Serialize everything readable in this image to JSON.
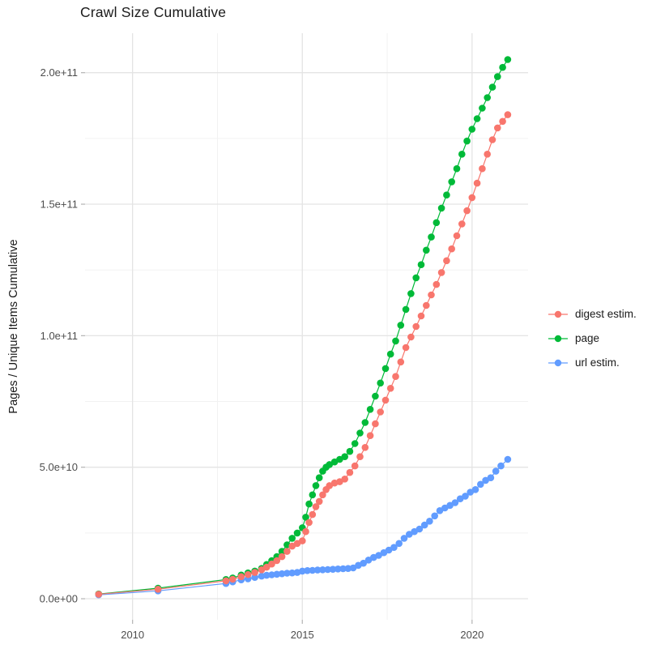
{
  "title": "Crawl Size Cumulative",
  "chart_data": {
    "type": "scatter",
    "line_overlay": true,
    "title": "Crawl Size Cumulative",
    "xlabel": "",
    "ylabel": "Pages / Unique Items Cumulative",
    "xlim": [
      2008.6,
      2021.65
    ],
    "ylim": [
      -8000000000.0,
      215000000000.0
    ],
    "grid": true,
    "legend_position": "right",
    "x_ticks": [
      {
        "value": 2010,
        "label": "2010"
      },
      {
        "value": 2015,
        "label": "2015"
      },
      {
        "value": 2020,
        "label": "2020"
      }
    ],
    "x_minor_ticks": [
      2012.5,
      2017.5
    ],
    "y_ticks": [
      {
        "value": 0,
        "label": "0.0e+00"
      },
      {
        "value": 50000000000.0,
        "label": "5.0e+10"
      },
      {
        "value": 100000000000.0,
        "label": "1.0e+11"
      },
      {
        "value": 150000000000.0,
        "label": "1.5e+11"
      },
      {
        "value": 200000000000.0,
        "label": "2.0e+11"
      }
    ],
    "y_minor_ticks": [
      25000000000.0,
      75000000000.0,
      125000000000.0,
      175000000000.0
    ],
    "series": [
      {
        "name": "digest estim.",
        "color": "#F8766D",
        "points": [
          [
            2009.0,
            1700000000.0
          ],
          [
            2010.75,
            3600000000.0
          ],
          [
            2012.75,
            6800000000.0
          ],
          [
            2012.95,
            7400000000.0
          ],
          [
            2013.2,
            8400000000.0
          ],
          [
            2013.4,
            9200000000.0
          ],
          [
            2013.6,
            10000000000.0
          ],
          [
            2013.8,
            11000000000.0
          ],
          [
            2013.95,
            12000000000.0
          ],
          [
            2014.1,
            13200000000.0
          ],
          [
            2014.25,
            14500000000.0
          ],
          [
            2014.4,
            16000000000.0
          ],
          [
            2014.55,
            18000000000.0
          ],
          [
            2014.7,
            20000000000.0
          ],
          [
            2014.85,
            21000000000.0
          ],
          [
            2015.0,
            22000000000.0
          ],
          [
            2015.1,
            25500000000.0
          ],
          [
            2015.2,
            29000000000.0
          ],
          [
            2015.3,
            32000000000.0
          ],
          [
            2015.4,
            35000000000.0
          ],
          [
            2015.5,
            37000000000.0
          ],
          [
            2015.6,
            39500000000.0
          ],
          [
            2015.7,
            41500000000.0
          ],
          [
            2015.8,
            43000000000.0
          ],
          [
            2015.95,
            44000000000.0
          ],
          [
            2016.1,
            44500000000.0
          ],
          [
            2016.25,
            45500000000.0
          ],
          [
            2016.4,
            48000000000.0
          ],
          [
            2016.55,
            50500000000.0
          ],
          [
            2016.7,
            54000000000.0
          ],
          [
            2016.85,
            57500000000.0
          ],
          [
            2017.0,
            62000000000.0
          ],
          [
            2017.15,
            66500000000.0
          ],
          [
            2017.3,
            71000000000.0
          ],
          [
            2017.45,
            75500000000.0
          ],
          [
            2017.6,
            80000000000.0
          ],
          [
            2017.75,
            84500000000.0
          ],
          [
            2017.9,
            90000000000.0
          ],
          [
            2018.05,
            95500000000.0
          ],
          [
            2018.2,
            99500000000.0
          ],
          [
            2018.35,
            103500000000.0
          ],
          [
            2018.5,
            107500000000.0
          ],
          [
            2018.65,
            111500000000.0
          ],
          [
            2018.8,
            115500000000.0
          ],
          [
            2018.95,
            119500000000.0
          ],
          [
            2019.1,
            124000000000.0
          ],
          [
            2019.25,
            128500000000.0
          ],
          [
            2019.4,
            133000000000.0
          ],
          [
            2019.55,
            138000000000.0
          ],
          [
            2019.7,
            142500000000.0
          ],
          [
            2019.85,
            147500000000.0
          ],
          [
            2020.0,
            152500000000.0
          ],
          [
            2020.15,
            158000000000.0
          ],
          [
            2020.3,
            163500000000.0
          ],
          [
            2020.45,
            169000000000.0
          ],
          [
            2020.6,
            174500000000.0
          ],
          [
            2020.75,
            179000000000.0
          ],
          [
            2020.9,
            181500000000.0
          ],
          [
            2021.05,
            184000000000.0
          ]
        ]
      },
      {
        "name": "page",
        "color": "#00BA38",
        "points": [
          [
            2009.0,
            1800000000.0
          ],
          [
            2010.75,
            4000000000.0
          ],
          [
            2012.75,
            7300000000.0
          ],
          [
            2012.95,
            7900000000.0
          ],
          [
            2013.2,
            9000000000.0
          ],
          [
            2013.4,
            9800000000.0
          ],
          [
            2013.6,
            10500000000.0
          ],
          [
            2013.8,
            11500000000.0
          ],
          [
            2013.95,
            13000000000.0
          ],
          [
            2014.1,
            14500000000.0
          ],
          [
            2014.25,
            16000000000.0
          ],
          [
            2014.4,
            18000000000.0
          ],
          [
            2014.55,
            20500000000.0
          ],
          [
            2014.7,
            23000000000.0
          ],
          [
            2014.85,
            25000000000.0
          ],
          [
            2015.0,
            27000000000.0
          ],
          [
            2015.1,
            31000000000.0
          ],
          [
            2015.2,
            36000000000.0
          ],
          [
            2015.3,
            39500000000.0
          ],
          [
            2015.4,
            43000000000.0
          ],
          [
            2015.5,
            46000000000.0
          ],
          [
            2015.6,
            48500000000.0
          ],
          [
            2015.7,
            50000000000.0
          ],
          [
            2015.8,
            51000000000.0
          ],
          [
            2015.95,
            52000000000.0
          ],
          [
            2016.1,
            53000000000.0
          ],
          [
            2016.25,
            54000000000.0
          ],
          [
            2016.4,
            56000000000.0
          ],
          [
            2016.55,
            59000000000.0
          ],
          [
            2016.7,
            63000000000.0
          ],
          [
            2016.85,
            67000000000.0
          ],
          [
            2017.0,
            72000000000.0
          ],
          [
            2017.15,
            77000000000.0
          ],
          [
            2017.3,
            82000000000.0
          ],
          [
            2017.45,
            87500000000.0
          ],
          [
            2017.6,
            93000000000.0
          ],
          [
            2017.75,
            98000000000.0
          ],
          [
            2017.9,
            104000000000.0
          ],
          [
            2018.05,
            110000000000.0
          ],
          [
            2018.2,
            116000000000.0
          ],
          [
            2018.35,
            122000000000.0
          ],
          [
            2018.5,
            127000000000.0
          ],
          [
            2018.65,
            132500000000.0
          ],
          [
            2018.8,
            137500000000.0
          ],
          [
            2018.95,
            143000000000.0
          ],
          [
            2019.1,
            148500000000.0
          ],
          [
            2019.25,
            153500000000.0
          ],
          [
            2019.4,
            158500000000.0
          ],
          [
            2019.55,
            163500000000.0
          ],
          [
            2019.7,
            169000000000.0
          ],
          [
            2019.85,
            174000000000.0
          ],
          [
            2020.0,
            178500000000.0
          ],
          [
            2020.15,
            182500000000.0
          ],
          [
            2020.3,
            186500000000.0
          ],
          [
            2020.45,
            190500000000.0
          ],
          [
            2020.6,
            194500000000.0
          ],
          [
            2020.75,
            198500000000.0
          ],
          [
            2020.9,
            202000000000.0
          ],
          [
            2021.05,
            205000000000.0
          ]
        ]
      },
      {
        "name": "url estim.",
        "color": "#619CFF",
        "points": [
          [
            2009.0,
            1500000000.0
          ],
          [
            2010.75,
            3000000000.0
          ],
          [
            2012.75,
            5800000000.0
          ],
          [
            2012.95,
            6400000000.0
          ],
          [
            2013.2,
            7200000000.0
          ],
          [
            2013.4,
            7600000000.0
          ],
          [
            2013.6,
            8100000000.0
          ],
          [
            2013.8,
            8600000000.0
          ],
          [
            2013.95,
            8900000000.0
          ],
          [
            2014.1,
            9100000000.0
          ],
          [
            2014.25,
            9300000000.0
          ],
          [
            2014.4,
            9500000000.0
          ],
          [
            2014.55,
            9700000000.0
          ],
          [
            2014.7,
            9800000000.0
          ],
          [
            2014.85,
            10000000000.0
          ],
          [
            2015.0,
            10500000000.0
          ],
          [
            2015.15,
            10700000000.0
          ],
          [
            2015.3,
            10800000000.0
          ],
          [
            2015.45,
            10900000000.0
          ],
          [
            2015.6,
            11000000000.0
          ],
          [
            2015.75,
            11100000000.0
          ],
          [
            2015.9,
            11200000000.0
          ],
          [
            2016.05,
            11300000000.0
          ],
          [
            2016.2,
            11400000000.0
          ],
          [
            2016.35,
            11500000000.0
          ],
          [
            2016.5,
            11700000000.0
          ],
          [
            2016.65,
            12700000000.0
          ],
          [
            2016.8,
            13500000000.0
          ],
          [
            2016.95,
            14700000000.0
          ],
          [
            2017.1,
            15700000000.0
          ],
          [
            2017.25,
            16500000000.0
          ],
          [
            2017.4,
            17500000000.0
          ],
          [
            2017.55,
            18500000000.0
          ],
          [
            2017.7,
            19500000000.0
          ],
          [
            2017.85,
            21000000000.0
          ],
          [
            2018.0,
            23000000000.0
          ],
          [
            2018.15,
            24500000000.0
          ],
          [
            2018.3,
            25500000000.0
          ],
          [
            2018.45,
            26500000000.0
          ],
          [
            2018.6,
            28000000000.0
          ],
          [
            2018.75,
            29500000000.0
          ],
          [
            2018.9,
            31500000000.0
          ],
          [
            2019.05,
            33500000000.0
          ],
          [
            2019.2,
            34500000000.0
          ],
          [
            2019.35,
            35500000000.0
          ],
          [
            2019.5,
            36500000000.0
          ],
          [
            2019.65,
            38000000000.0
          ],
          [
            2019.8,
            39000000000.0
          ],
          [
            2019.95,
            40500000000.0
          ],
          [
            2020.1,
            41500000000.0
          ],
          [
            2020.25,
            43500000000.0
          ],
          [
            2020.4,
            45000000000.0
          ],
          [
            2020.55,
            46000000000.0
          ],
          [
            2020.7,
            48500000000.0
          ],
          [
            2020.85,
            50500000000.0
          ],
          [
            2021.05,
            53000000000.0
          ]
        ]
      }
    ]
  }
}
